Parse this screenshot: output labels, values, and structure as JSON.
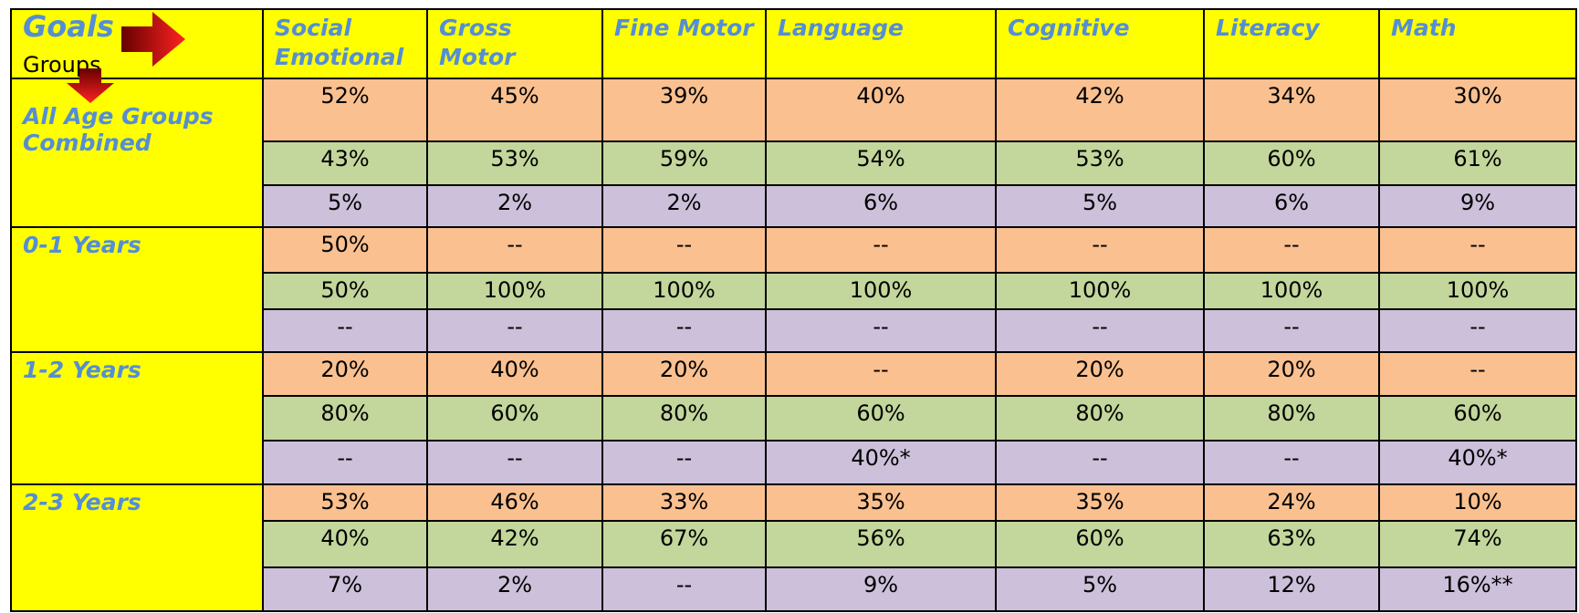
{
  "header": {
    "goals": "Goals",
    "groups": "Groups",
    "columns": [
      "Social Emotional",
      "Gross Motor",
      "Fine Motor",
      "Language",
      "Cognitive",
      "Literacy",
      "Math"
    ]
  },
  "groups": [
    {
      "label": "All Age Groups Combined",
      "rows": [
        [
          "52%",
          "45%",
          "39%",
          "40%",
          "42%",
          "34%",
          "30%"
        ],
        [
          "43%",
          "53%",
          "59%",
          "54%",
          "53%",
          "60%",
          "61%"
        ],
        [
          "5%",
          "2%",
          "2%",
          "6%",
          "5%",
          "6%",
          "9%"
        ]
      ]
    },
    {
      "label": "0-1 Years",
      "rows": [
        [
          "50%",
          "--",
          "--",
          "--",
          "--",
          "--",
          "--"
        ],
        [
          "50%",
          "100%",
          "100%",
          "100%",
          "100%",
          "100%",
          "100%"
        ],
        [
          "--",
          "--",
          "--",
          "--",
          "--",
          "--",
          "--"
        ]
      ]
    },
    {
      "label": "1-2 Years",
      "rows": [
        [
          "20%",
          "40%",
          "20%",
          "--",
          "20%",
          "20%",
          "--"
        ],
        [
          "80%",
          "60%",
          "80%",
          "60%",
          "80%",
          "80%",
          "60%"
        ],
        [
          "--",
          "--",
          "--",
          "40%*",
          "--",
          "--",
          "40%*"
        ]
      ]
    },
    {
      "label": "2-3 Years",
      "rows": [
        [
          "53%",
          "46%",
          "33%",
          "35%",
          "35%",
          "24%",
          "10%"
        ],
        [
          "40%",
          "42%",
          "67%",
          "56%",
          "60%",
          "63%",
          "74%"
        ],
        [
          "7%",
          "2%",
          "--",
          "9%",
          "5%",
          "12%",
          "16%**"
        ]
      ]
    }
  ]
}
